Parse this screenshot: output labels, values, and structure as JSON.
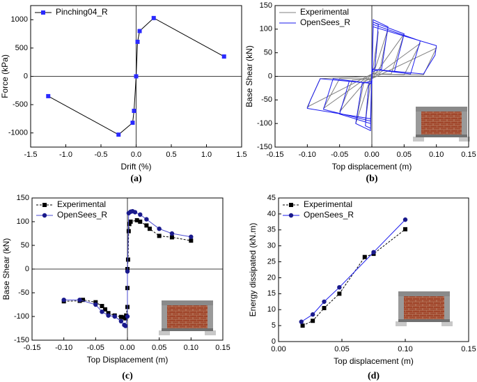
{
  "chart_data": [
    {
      "type": "line",
      "xlabel": "Drift (%)",
      "ylabel": "Force (kPa)",
      "panel_label": "(a)",
      "xlim": [
        -1.5,
        1.5
      ],
      "xticks": [
        -1.5,
        {
          "value": -1,
          "label": "-1.0"
        },
        -0.5,
        {
          "value": 0,
          "label": "0.0"
        },
        0.5,
        {
          "value": 1,
          "label": "1.0"
        },
        1.5
      ],
      "ylim": [
        -1250,
        1250
      ],
      "yticks": [
        -1000,
        -500,
        0,
        500,
        1000
      ],
      "zero_lines": true,
      "legend": "upper left",
      "series": [
        {
          "name": "Pinching04_R",
          "color": "#2a2aff",
          "line_color": "#000000",
          "marker": "square",
          "dash": false,
          "x": [
            -1.25,
            -0.25,
            -0.05,
            -0.03,
            0,
            0.02,
            0.05,
            0.25,
            1.25
          ],
          "values": [
            -350,
            -1030,
            -820,
            -610,
            0,
            610,
            800,
            1030,
            350
          ]
        }
      ]
    },
    {
      "type": "line",
      "xlabel": "Top displacement (m)",
      "ylabel": "Base Shear (kN)",
      "panel_label": "(b)",
      "xlim": [
        -0.15,
        0.15
      ],
      "xticks": [
        -0.15,
        {
          "value": -0.1,
          "label": "-0.10"
        },
        -0.05,
        {
          "value": 0,
          "label": "0.00"
        },
        0.05,
        {
          "value": 0.1,
          "label": "0.10"
        },
        0.15
      ],
      "ylim": [
        -150,
        150
      ],
      "yticks": [
        -150,
        -100,
        -50,
        0,
        50,
        100,
        150
      ],
      "zero_lines": true,
      "legend": "upper left",
      "series": [
        {
          "name": "Experimental",
          "color": "#808080",
          "line_color": "#808080",
          "marker": "none",
          "dash": false,
          "x": [
            0,
            0.01,
            0.004,
            0,
            -0.01,
            -0.004,
            0,
            0.025,
            0.012,
            0,
            -0.025,
            -0.012,
            0,
            0.05,
            0.03,
            0,
            -0.05,
            -0.03,
            0,
            0.075,
            0.05,
            0,
            -0.075,
            -0.05,
            0,
            0.1,
            0.08,
            0,
            -0.1,
            -0.08,
            0
          ],
          "values": [
            0,
            95,
            10,
            5,
            -95,
            -10,
            -5,
            100,
            10,
            5,
            -100,
            -10,
            -5,
            90,
            5,
            5,
            -75,
            -8,
            -5,
            70,
            3,
            5,
            -68,
            -5,
            -5,
            60,
            3,
            5,
            -65,
            -5,
            0
          ]
        },
        {
          "name": "OpenSees_R",
          "color": "#1a1aee",
          "line_color": "#1a1aee",
          "marker": "none",
          "dash": false,
          "x": [
            0,
            0.002,
            0.01,
            0.005,
            0,
            -0.002,
            -0.01,
            -0.005,
            0,
            0.002,
            0.025,
            0.015,
            0,
            -0.002,
            -0.025,
            -0.015,
            0,
            0.002,
            0.05,
            0.035,
            0,
            -0.002,
            -0.05,
            -0.035,
            0,
            0.002,
            0.075,
            0.06,
            0,
            -0.002,
            -0.075,
            -0.06,
            0,
            0.002,
            0.1,
            0.098,
            0.08,
            0,
            -0.002,
            -0.1,
            -0.095,
            -0.08,
            0
          ],
          "values": [
            0,
            115,
            110,
            20,
            10,
            -110,
            -105,
            -20,
            -10,
            120,
            105,
            15,
            10,
            -115,
            -100,
            -15,
            -10,
            115,
            90,
            10,
            15,
            -100,
            -80,
            -10,
            -15,
            110,
            75,
            5,
            15,
            -95,
            -70,
            -5,
            -15,
            105,
            65,
            45,
            5,
            15,
            -90,
            -68,
            -50,
            -5,
            -15
          ]
        }
      ]
    },
    {
      "type": "line",
      "xlabel": "Top Displacement (m)",
      "ylabel": "Base Shear (kN)",
      "panel_label": "(c)",
      "xlim": [
        -0.15,
        0.15
      ],
      "xticks": [
        -0.15,
        {
          "value": -0.1,
          "label": "-0.10"
        },
        -0.05,
        {
          "value": 0,
          "label": "0.00"
        },
        0.05,
        {
          "value": 0.1,
          "label": "0.10"
        },
        0.15
      ],
      "ylim": [
        -150,
        150
      ],
      "yticks": [
        -150,
        -100,
        -50,
        0,
        50,
        100,
        150
      ],
      "zero_lines": true,
      "legend": "upper left",
      "series": [
        {
          "name": "Experimental",
          "color": "#000000",
          "line_color": "#000000",
          "marker": "square",
          "dash": true,
          "x": [
            -0.1,
            -0.075,
            -0.07,
            -0.05,
            -0.04,
            -0.035,
            -0.03,
            -0.02,
            -0.01,
            -0.005,
            -0.003,
            -0.002,
            0,
            0,
            0,
            0.001,
            0.002,
            0.003,
            0.005,
            0.015,
            0.02,
            0.03,
            0.035,
            0.05,
            0.07,
            0.1
          ],
          "values": [
            -68,
            -67,
            -65,
            -70,
            -78,
            -85,
            -93,
            -98,
            -101,
            -102,
            -104,
            -98,
            -80,
            -40,
            0,
            20,
            80,
            95,
            100,
            103,
            100,
            92,
            85,
            70,
            67,
            60
          ]
        },
        {
          "name": "OpenSees_R",
          "color": "#1a1a8c",
          "line_color": "#4a4ad0",
          "marker": "circle",
          "dash": false,
          "x": [
            -0.1,
            -0.075,
            -0.05,
            -0.04,
            -0.03,
            -0.02,
            -0.01,
            -0.005,
            -0.003,
            0,
            0,
            0.002,
            0.005,
            0.008,
            0.012,
            0.02,
            0.03,
            0.05,
            0.07,
            0.1
          ],
          "values": [
            -65,
            -65,
            -75,
            -90,
            -98,
            -100,
            -110,
            -118,
            -120,
            -100,
            -5,
            118,
            121,
            122,
            120,
            115,
            105,
            85,
            75,
            68
          ]
        }
      ]
    },
    {
      "type": "line",
      "xlabel": "Top displacement (m)",
      "ylabel": "Energy dissipated (kN.m)",
      "panel_label": "(d)",
      "xlim": [
        0,
        0.15
      ],
      "xticks": [
        {
          "value": 0,
          "label": "0.00"
        },
        0.05,
        {
          "value": 0.1,
          "label": "0.10"
        },
        0.15
      ],
      "ylim": [
        0,
        45
      ],
      "yticks": [
        0,
        5,
        10,
        15,
        20,
        25,
        30,
        35,
        40,
        45
      ],
      "zero_lines": false,
      "legend": "upper left",
      "series": [
        {
          "name": "Experimental",
          "color": "#000000",
          "line_color": "#000000",
          "marker": "square",
          "dash": true,
          "x": [
            0.019,
            0.027,
            0.036,
            0.048,
            0.068,
            0.075,
            0.1
          ],
          "values": [
            5,
            6.5,
            10.5,
            15,
            26.5,
            27.5,
            35.2
          ]
        },
        {
          "name": "OpenSees_R",
          "color": "#1a1a8c",
          "line_color": "#1a1aee",
          "marker": "circle",
          "dash": false,
          "x": [
            0.018,
            0.027,
            0.036,
            0.048,
            0.075,
            0.1
          ],
          "values": [
            6.2,
            8.5,
            12.5,
            17,
            28,
            38.2
          ]
        }
      ]
    }
  ]
}
